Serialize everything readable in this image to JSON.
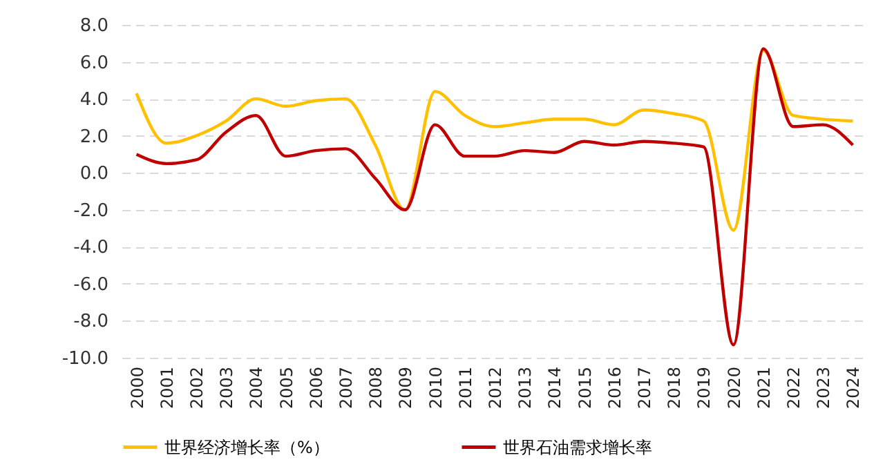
{
  "chart_data": {
    "type": "line",
    "categories": [
      "2000",
      "2001",
      "2002",
      "2003",
      "2004",
      "2005",
      "2006",
      "2007",
      "2008",
      "2009",
      "2010",
      "2011",
      "2012",
      "2013",
      "2014",
      "2015",
      "2016",
      "2017",
      "2018",
      "2019",
      "2020",
      "2021",
      "2022",
      "2023",
      "2024"
    ],
    "series": [
      {
        "name": "世界经济增长率（%）",
        "color": "#ffc000",
        "values": [
          4.3,
          1.6,
          2.0,
          2.8,
          4.0,
          3.6,
          3.9,
          4.0,
          1.5,
          -2.0,
          4.4,
          3.1,
          2.5,
          2.7,
          2.9,
          2.9,
          2.6,
          3.4,
          3.2,
          2.8,
          -3.1,
          6.6,
          3.1,
          2.9,
          2.8
        ]
      },
      {
        "name": "世界石油需求增长率",
        "color": "#c00000",
        "values": [
          1.0,
          0.5,
          0.7,
          2.2,
          3.1,
          0.9,
          1.2,
          1.3,
          -0.3,
          -2.0,
          2.6,
          0.9,
          0.9,
          1.2,
          1.1,
          1.7,
          1.5,
          1.7,
          1.6,
          1.4,
          -9.3,
          6.7,
          2.5,
          2.6,
          1.5
        ]
      }
    ],
    "ylim": [
      -10,
      8
    ],
    "yticks": [
      {
        "value": -10,
        "label": "-10.0"
      },
      {
        "value": -8,
        "label": "-8.0"
      },
      {
        "value": -6,
        "label": "-6.0"
      },
      {
        "value": -4,
        "label": "-4.0"
      },
      {
        "value": -2,
        "label": "-2.0"
      },
      {
        "value": 0,
        "label": "0.0"
      },
      {
        "value": 2,
        "label": "2.0"
      },
      {
        "value": 4,
        "label": "4.0"
      },
      {
        "value": 6,
        "label": "6.0"
      },
      {
        "value": 8,
        "label": "8.0"
      }
    ],
    "grid": "y",
    "legend": "bottom",
    "marker": "none",
    "line_style": "solid"
  }
}
